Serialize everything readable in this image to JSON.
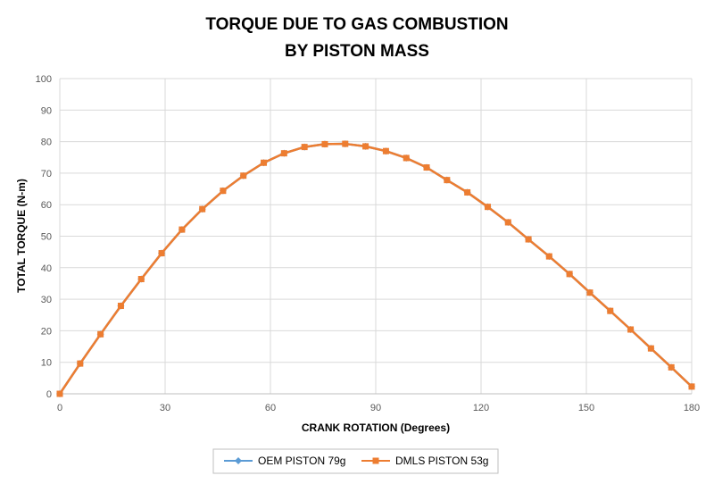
{
  "chart_data": {
    "type": "line",
    "title_line1": "TORQUE DUE TO GAS COMBUSTION",
    "title_line2": "BY PISTON MASS",
    "xlabel": "CRANK ROTATION (Degrees)",
    "ylabel": "TOTAL TORQUE (N-m)",
    "xlim": [
      0,
      180
    ],
    "ylim": [
      0,
      100
    ],
    "xticks": [
      0,
      30,
      60,
      90,
      120,
      150,
      180
    ],
    "yticks": [
      0,
      10,
      20,
      30,
      40,
      50,
      60,
      70,
      80,
      90,
      100
    ],
    "grid": true,
    "legend_position": "bottom",
    "series": [
      {
        "name": "OEM PISTON 79g",
        "color": "#5b9bd5",
        "marker": "diamond",
        "x": [
          0,
          5.8,
          11.6,
          17.4,
          23.2,
          29.0,
          34.8,
          40.6,
          46.5,
          52.3,
          58.1,
          63.9,
          69.7,
          75.5,
          81.3,
          87.1,
          92.9,
          98.7,
          104.5,
          110.3,
          116.1,
          121.9,
          127.7,
          133.5,
          139.4,
          145.2,
          151.0,
          156.8,
          162.6,
          168.4,
          174.2,
          180
        ],
        "y": [
          0,
          9.6,
          18.9,
          27.9,
          36.4,
          44.6,
          52.1,
          58.6,
          64.4,
          69.2,
          73.3,
          76.3,
          78.3,
          79.2,
          79.3,
          78.5,
          77.0,
          74.8,
          71.8,
          67.8,
          63.9,
          59.3,
          54.4,
          49.0,
          43.6,
          38.0,
          32.1,
          26.3,
          20.4,
          14.4,
          8.4,
          2.3
        ]
      },
      {
        "name": "DMLS PISTON 53g",
        "color": "#ed7d31",
        "marker": "square",
        "x": [
          0,
          5.8,
          11.6,
          17.4,
          23.2,
          29.0,
          34.8,
          40.6,
          46.5,
          52.3,
          58.1,
          63.9,
          69.7,
          75.5,
          81.3,
          87.1,
          92.9,
          98.7,
          104.5,
          110.3,
          116.1,
          121.9,
          127.7,
          133.5,
          139.4,
          145.2,
          151.0,
          156.8,
          162.6,
          168.4,
          174.2,
          180
        ],
        "y": [
          0,
          9.6,
          18.9,
          27.9,
          36.4,
          44.6,
          52.1,
          58.6,
          64.4,
          69.2,
          73.3,
          76.3,
          78.3,
          79.2,
          79.3,
          78.5,
          77.0,
          74.8,
          71.8,
          67.8,
          63.9,
          59.3,
          54.4,
          49.0,
          43.6,
          38.0,
          32.1,
          26.3,
          20.4,
          14.4,
          8.4,
          2.3
        ]
      }
    ]
  }
}
